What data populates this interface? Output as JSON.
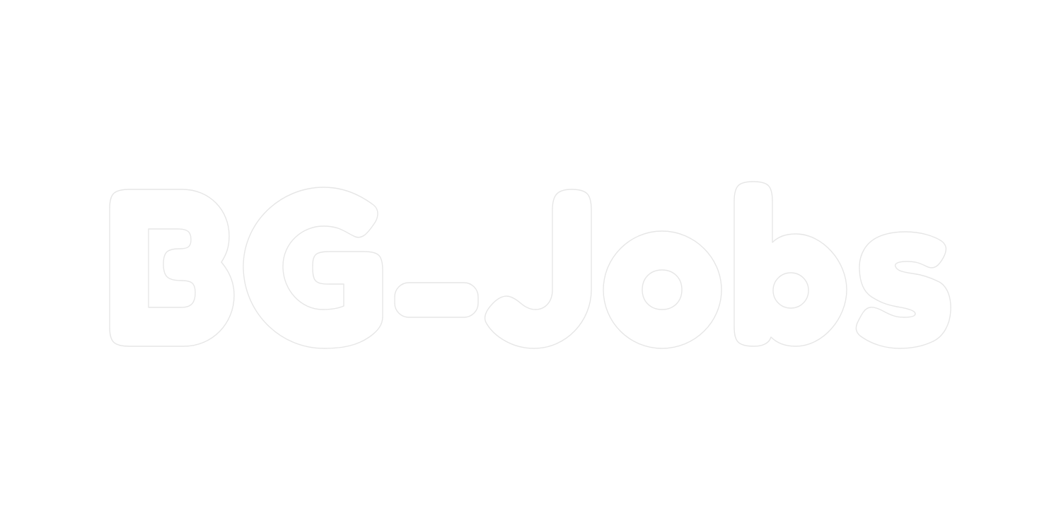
{
  "logo": {
    "text": "BG-Jobs",
    "stroke_color": "#e6e6e6",
    "background_color": "#ffffff"
  }
}
